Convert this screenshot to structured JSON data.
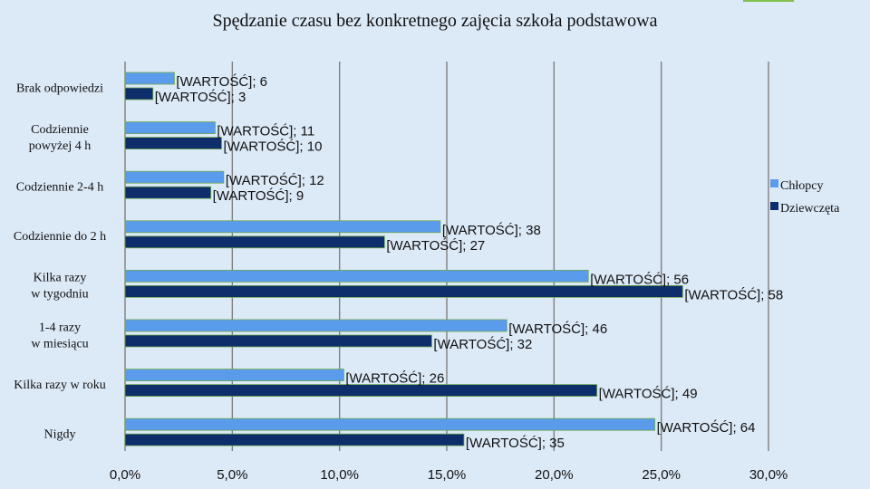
{
  "chart_data": {
    "type": "bar",
    "orientation": "horizontal",
    "title": "Spędzanie czasu bez konkretnego zajęcia  szkoła podstawowa",
    "categories": [
      "Brak odpowiedzi",
      "Codziennie powyżej 4 h",
      "Codziennie 2-4 h",
      "Codziennie do 2 h",
      "Kilka razy w tygodniu",
      "1-4 razy w miesiącu",
      "Kilka razy w roku",
      "Nigdy"
    ],
    "series": [
      {
        "name": "Chłopcy",
        "color": "#5b9bec",
        "percent_values": [
          2.3,
          4.2,
          4.6,
          14.7,
          21.6,
          17.8,
          10.2,
          24.7
        ],
        "labels": [
          "[WARTOŚĆ]; 6",
          "[WARTOŚĆ]; 11",
          "[WARTOŚĆ]; 12",
          "[WARTOŚĆ]; 38",
          "[WARTOŚĆ]; 56",
          "[WARTOŚĆ]; 46",
          "[WARTOŚĆ]; 26",
          "[WARTOŚĆ]; 64"
        ]
      },
      {
        "name": "Dziewczęta",
        "color": "#0d2d6b",
        "percent_values": [
          1.3,
          4.5,
          4.0,
          12.1,
          26.0,
          14.3,
          22.0,
          15.8
        ],
        "labels": [
          "[WARTOŚĆ]; 3",
          "[WARTOŚĆ]; 10",
          "[WARTOŚĆ]; 9",
          "[WARTOŚĆ]; 27",
          "[WARTOŚĆ]; 58",
          "[WARTOŚĆ]; 32",
          "[WARTOŚĆ]; 49",
          "[WARTOŚĆ]; 35"
        ]
      }
    ],
    "xlim": [
      0,
      30
    ],
    "xticks": [
      0,
      5,
      10,
      15,
      20,
      25,
      30
    ],
    "xtick_labels": [
      "0,0%",
      "5,0%",
      "10,0%",
      "15,0%",
      "20,0%",
      "25,0%",
      "30,0%"
    ],
    "grid": true,
    "legend_position": "right"
  }
}
